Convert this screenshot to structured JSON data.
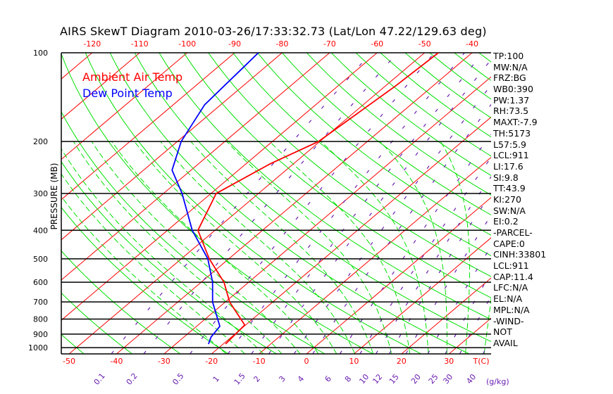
{
  "title": "AIRS SkewT Diagram 2010-03-26/17:33:32.73 (Lat/Lon 47.22/129.63 deg)",
  "legend": {
    "temp": "Ambient Air Temp",
    "dew": "Dew Point Temp"
  },
  "stats": [
    "TP:100",
    "MW:N/A",
    "FRZ:BG",
    "WB0:390",
    "PW:1.37",
    "RH:73.5",
    "MAXT:-7.9",
    "TH:5173",
    "L57:5.9",
    "LCL:911",
    "LI:17.6",
    "SI:9.8",
    "TT:43.9",
    "KI:270",
    "SW:N/A",
    "EI:0.2",
    "-PARCEL-",
    "CAPE:0",
    "CINH:33801",
    "LCL:911",
    "CAP:11.4",
    "LFC:N/A",
    "EL:N/A",
    "MPL:N/A",
    "-WIND-",
    "NOT",
    "AVAIL"
  ],
  "colors": {
    "temp": "#ff0000",
    "dew": "#0000ff",
    "isotherm": "#ff0000",
    "adiabat": "#00e000",
    "mixing": "#6a1fb0",
    "axis": "#000000"
  },
  "chart_data": {
    "type": "line",
    "title": "AIRS SkewT Diagram 2010-03-26/17:33:32.73 (Lat/Lon 47.22/129.63 deg)",
    "ylabel": "PRESSURE (MB)",
    "xlabel": "T(C)",
    "mixing_label": "(g/kg)",
    "ylim": [
      1050,
      100
    ],
    "pressure_ticks": [
      "100",
      "200",
      "300",
      "400",
      "500",
      "600",
      "700",
      "800",
      "900",
      "1000"
    ],
    "top_temp_ticks": [
      "-120",
      "-110",
      "-100",
      "-90",
      "-80",
      "-70",
      "-60",
      "-50",
      "-40"
    ],
    "bottom_temp_ticks": [
      "-50",
      "-40",
      "-30",
      "-20",
      "-10",
      "0",
      "10",
      "20",
      "30"
    ],
    "mixing_ratio_ticks": [
      "0.1",
      "0.2",
      "0.5",
      "1",
      "1.5",
      "2",
      "3",
      "4",
      "6",
      "8",
      "10",
      "12",
      "15",
      "20",
      "25",
      "30",
      "40"
    ],
    "legend_position": "top-left",
    "series": [
      {
        "name": "Ambient Air Temp",
        "points": [
          [
            100,
            -47.1
          ],
          [
            130,
            -47.9
          ],
          [
            200,
            -50.3
          ],
          [
            238,
            -54.9
          ],
          [
            300,
            -58.9
          ],
          [
            400,
            -53.6
          ],
          [
            500,
            -44.1
          ],
          [
            600,
            -35.2
          ],
          [
            700,
            -29.1
          ],
          [
            838,
            -20.2
          ],
          [
            972,
            -19.5
          ]
        ]
      },
      {
        "name": "Dew Point Temp",
        "points": [
          [
            100,
            -85
          ],
          [
            113,
            -84.5
          ],
          [
            150,
            -83.4
          ],
          [
            200,
            -79.2
          ],
          [
            250,
            -74
          ],
          [
            300,
            -66.1
          ],
          [
            400,
            -54.8
          ],
          [
            500,
            -44.4
          ],
          [
            600,
            -37.6
          ],
          [
            700,
            -32.7
          ],
          [
            847,
            -25.1
          ],
          [
            920,
            -24.3
          ],
          [
            972,
            -23.1
          ]
        ]
      }
    ]
  }
}
